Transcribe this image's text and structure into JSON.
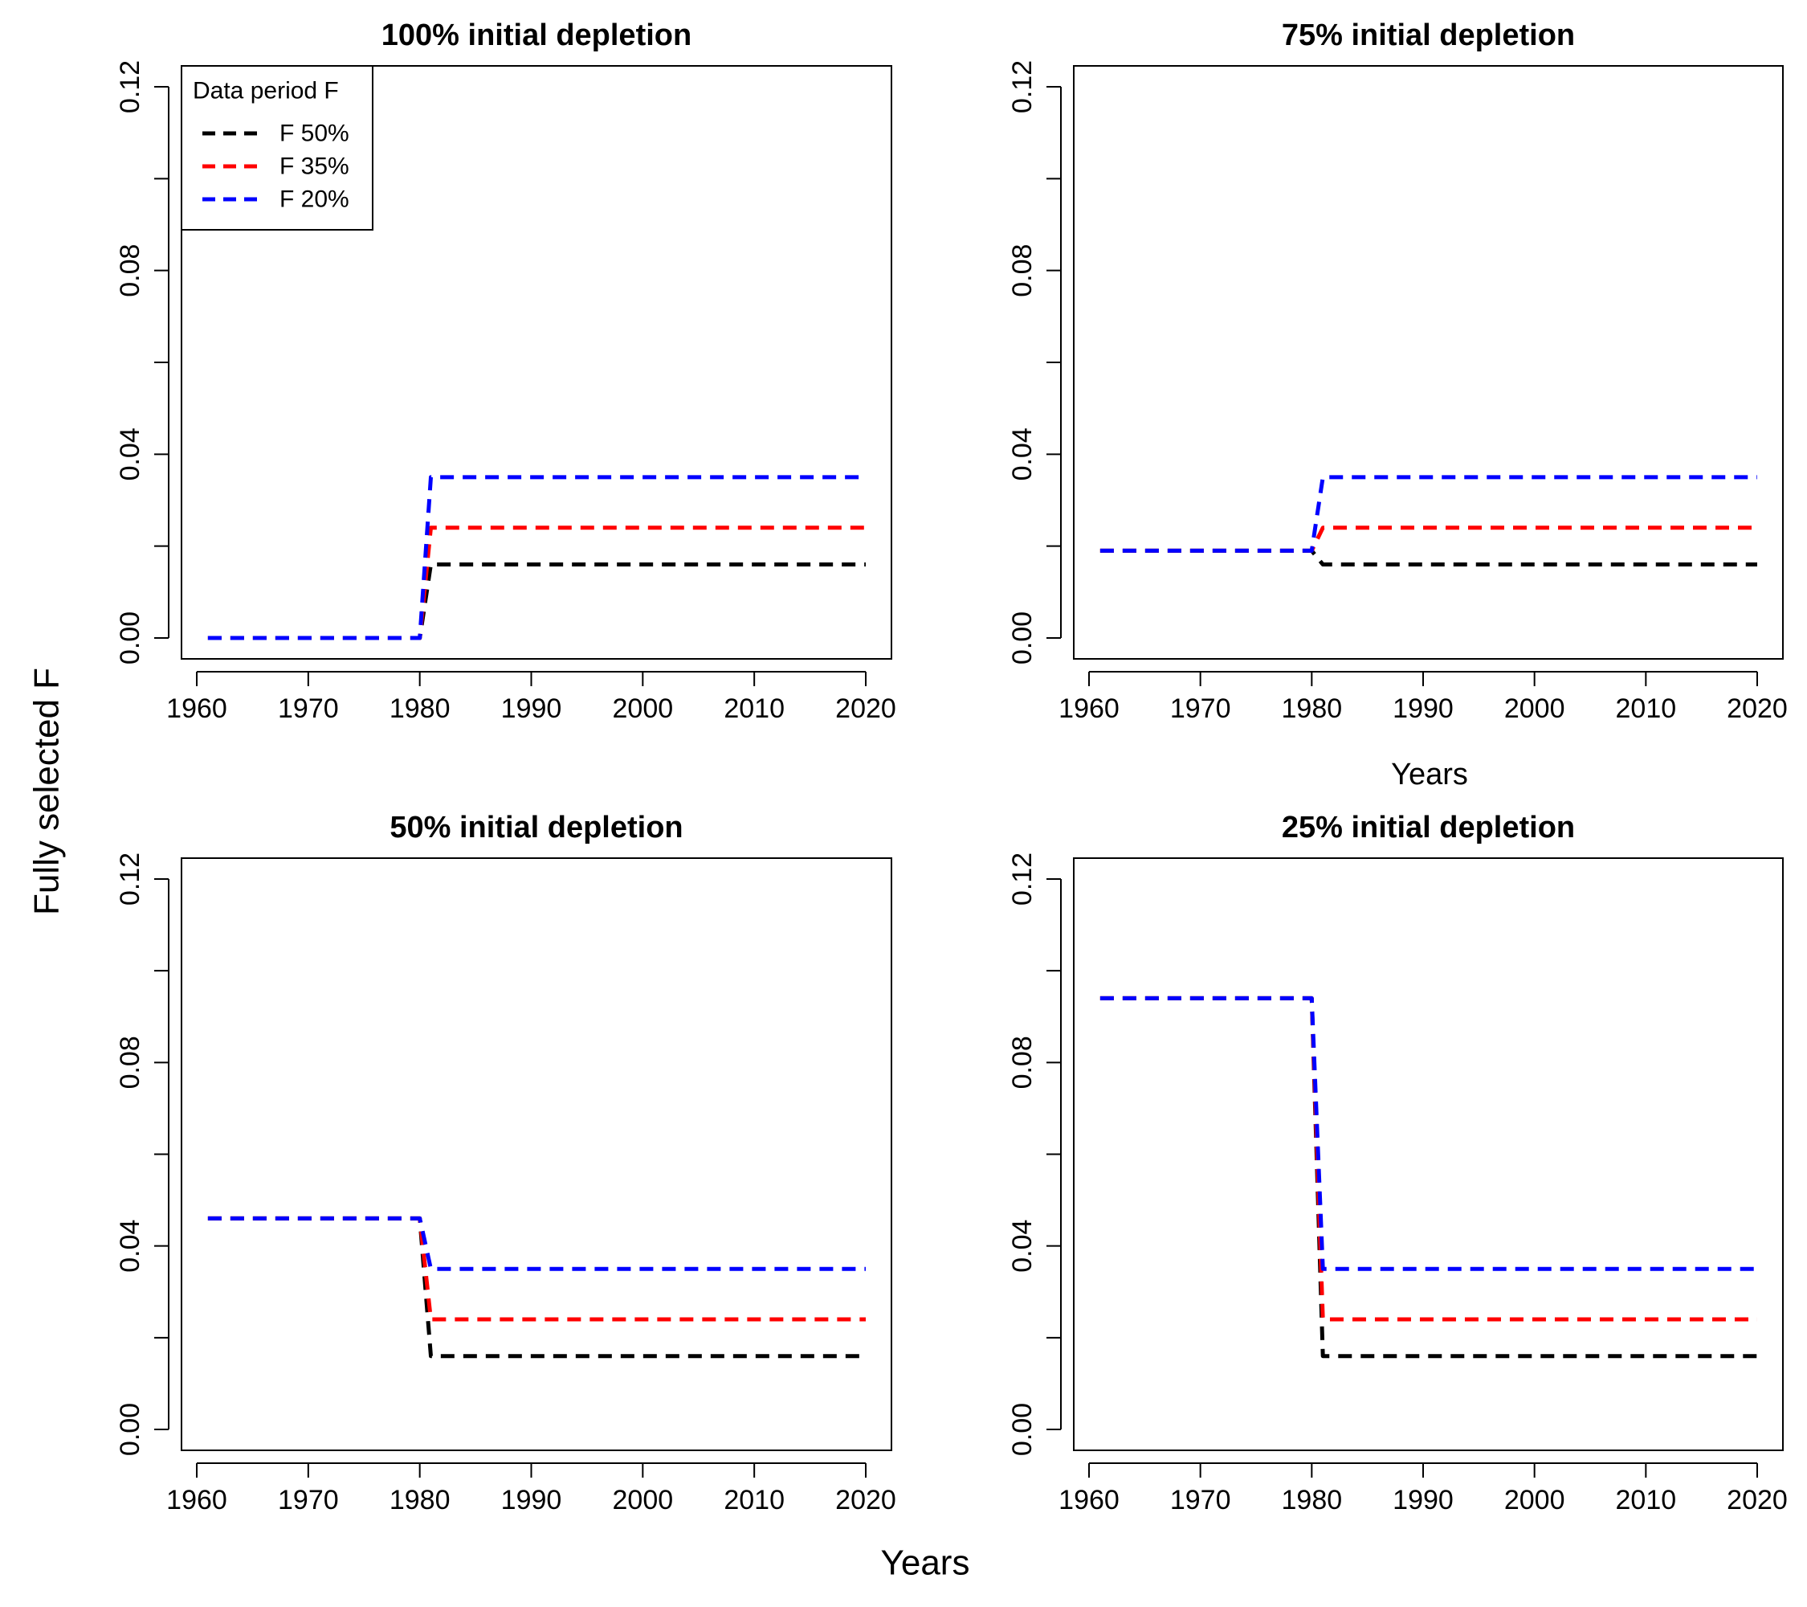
{
  "figure": {
    "ylabel": "Fully selected F",
    "xlabel": "Years",
    "secondary_xlabel": "Years"
  },
  "legend": {
    "title": "Data period F",
    "entries": [
      "F 50%",
      "F 35%",
      "F 20%"
    ]
  },
  "colors": {
    "F 50%": "#000000",
    "F 35%": "#ff0000",
    "F 20%": "#0000ff"
  },
  "chart_data": [
    {
      "type": "line",
      "title": "100% initial depletion",
      "xlim": [
        1960,
        2020
      ],
      "ylim": [
        0,
        0.12
      ],
      "xticks": [
        "1960",
        "1970",
        "1980",
        "1990",
        "2000",
        "2010",
        "2020"
      ],
      "yticks": [
        "0.00",
        "0.04",
        "0.08",
        "0.12"
      ],
      "series": [
        {
          "name": "F 50%",
          "x": [
            1961,
            1980,
            1981,
            2020
          ],
          "y": [
            0,
            0,
            0.016,
            0.016
          ]
        },
        {
          "name": "F 35%",
          "x": [
            1961,
            1980,
            1981,
            2020
          ],
          "y": [
            0,
            0,
            0.024,
            0.024
          ]
        },
        {
          "name": "F 20%",
          "x": [
            1961,
            1980,
            1981,
            2020
          ],
          "y": [
            0,
            0,
            0.035,
            0.035
          ]
        }
      ]
    },
    {
      "type": "line",
      "title": "75% initial depletion",
      "xlim": [
        1960,
        2020
      ],
      "ylim": [
        0,
        0.12
      ],
      "xticks": [
        "1960",
        "1970",
        "1980",
        "1990",
        "2000",
        "2010",
        "2020"
      ],
      "yticks": [
        "0.00",
        "0.04",
        "0.08",
        "0.12"
      ],
      "series": [
        {
          "name": "F 50%",
          "x": [
            1961,
            1980,
            1981,
            2020
          ],
          "y": [
            0.019,
            0.019,
            0.016,
            0.016
          ]
        },
        {
          "name": "F 35%",
          "x": [
            1961,
            1980,
            1981,
            2020
          ],
          "y": [
            0.019,
            0.019,
            0.024,
            0.024
          ]
        },
        {
          "name": "F 20%",
          "x": [
            1961,
            1980,
            1981,
            2020
          ],
          "y": [
            0.019,
            0.019,
            0.035,
            0.035
          ]
        }
      ]
    },
    {
      "type": "line",
      "title": "50% initial depletion",
      "xlim": [
        1960,
        2020
      ],
      "ylim": [
        0,
        0.12
      ],
      "xticks": [
        "1960",
        "1970",
        "1980",
        "1990",
        "2000",
        "2010",
        "2020"
      ],
      "yticks": [
        "0.00",
        "0.04",
        "0.08",
        "0.12"
      ],
      "series": [
        {
          "name": "F 50%",
          "x": [
            1961,
            1980,
            1981,
            2020
          ],
          "y": [
            0.046,
            0.046,
            0.016,
            0.016
          ]
        },
        {
          "name": "F 35%",
          "x": [
            1961,
            1980,
            1981,
            2020
          ],
          "y": [
            0.046,
            0.046,
            0.024,
            0.024
          ]
        },
        {
          "name": "F 20%",
          "x": [
            1961,
            1980,
            1981,
            2020
          ],
          "y": [
            0.046,
            0.046,
            0.035,
            0.035
          ]
        }
      ]
    },
    {
      "type": "line",
      "title": "25% initial depletion",
      "xlim": [
        1960,
        2020
      ],
      "ylim": [
        0,
        0.12
      ],
      "xticks": [
        "1960",
        "1970",
        "1980",
        "1990",
        "2000",
        "2010",
        "2020"
      ],
      "yticks": [
        "0.00",
        "0.04",
        "0.08",
        "0.12"
      ],
      "series": [
        {
          "name": "F 50%",
          "x": [
            1961,
            1980,
            1981,
            2020
          ],
          "y": [
            0.094,
            0.094,
            0.016,
            0.016
          ]
        },
        {
          "name": "F 35%",
          "x": [
            1961,
            1980,
            1981,
            2020
          ],
          "y": [
            0.094,
            0.094,
            0.024,
            0.024
          ]
        },
        {
          "name": "F 20%",
          "x": [
            1961,
            1980,
            1981,
            2020
          ],
          "y": [
            0.094,
            0.094,
            0.035,
            0.035
          ]
        }
      ]
    }
  ]
}
